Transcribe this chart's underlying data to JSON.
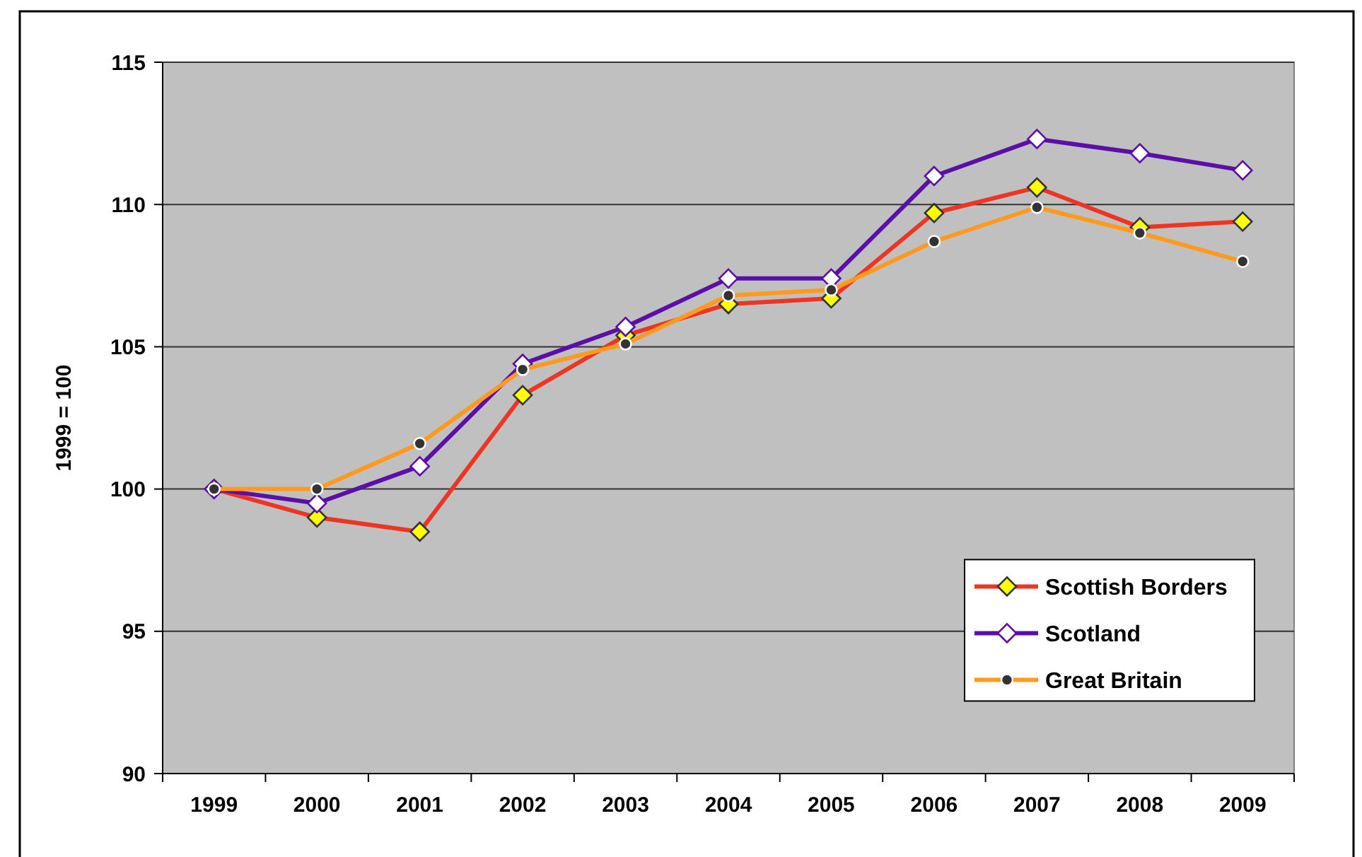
{
  "chart_data": {
    "type": "line",
    "ylabel": "1999 = 100",
    "categories": [
      "1999",
      "2000",
      "2001",
      "2002",
      "2003",
      "2004",
      "2005",
      "2006",
      "2007",
      "2008",
      "2009"
    ],
    "series": [
      {
        "name": "Scottish Borders",
        "color": "#ee3524",
        "marker": "diamond",
        "values": [
          100,
          99.0,
          98.5,
          103.3,
          105.4,
          106.5,
          106.7,
          109.7,
          110.6,
          109.2,
          109.4
        ]
      },
      {
        "name": "Scotland",
        "color": "#5b0fa8",
        "marker": "diamond",
        "values": [
          100,
          99.5,
          100.8,
          104.4,
          105.7,
          107.4,
          107.4,
          111.0,
          112.3,
          111.8,
          111.2
        ]
      },
      {
        "name": "Great Britain",
        "color": "#ff9a1f",
        "marker": "circle",
        "values": [
          100,
          100,
          101.6,
          104.2,
          105.1,
          106.8,
          107.0,
          108.7,
          109.9,
          109.0,
          108.0
        ]
      }
    ],
    "ylim": [
      90,
      115
    ],
    "yticks": [
      90,
      95,
      100,
      105,
      110,
      115
    ],
    "grid": "y",
    "legend": "bottom right",
    "line_style": "solid"
  }
}
